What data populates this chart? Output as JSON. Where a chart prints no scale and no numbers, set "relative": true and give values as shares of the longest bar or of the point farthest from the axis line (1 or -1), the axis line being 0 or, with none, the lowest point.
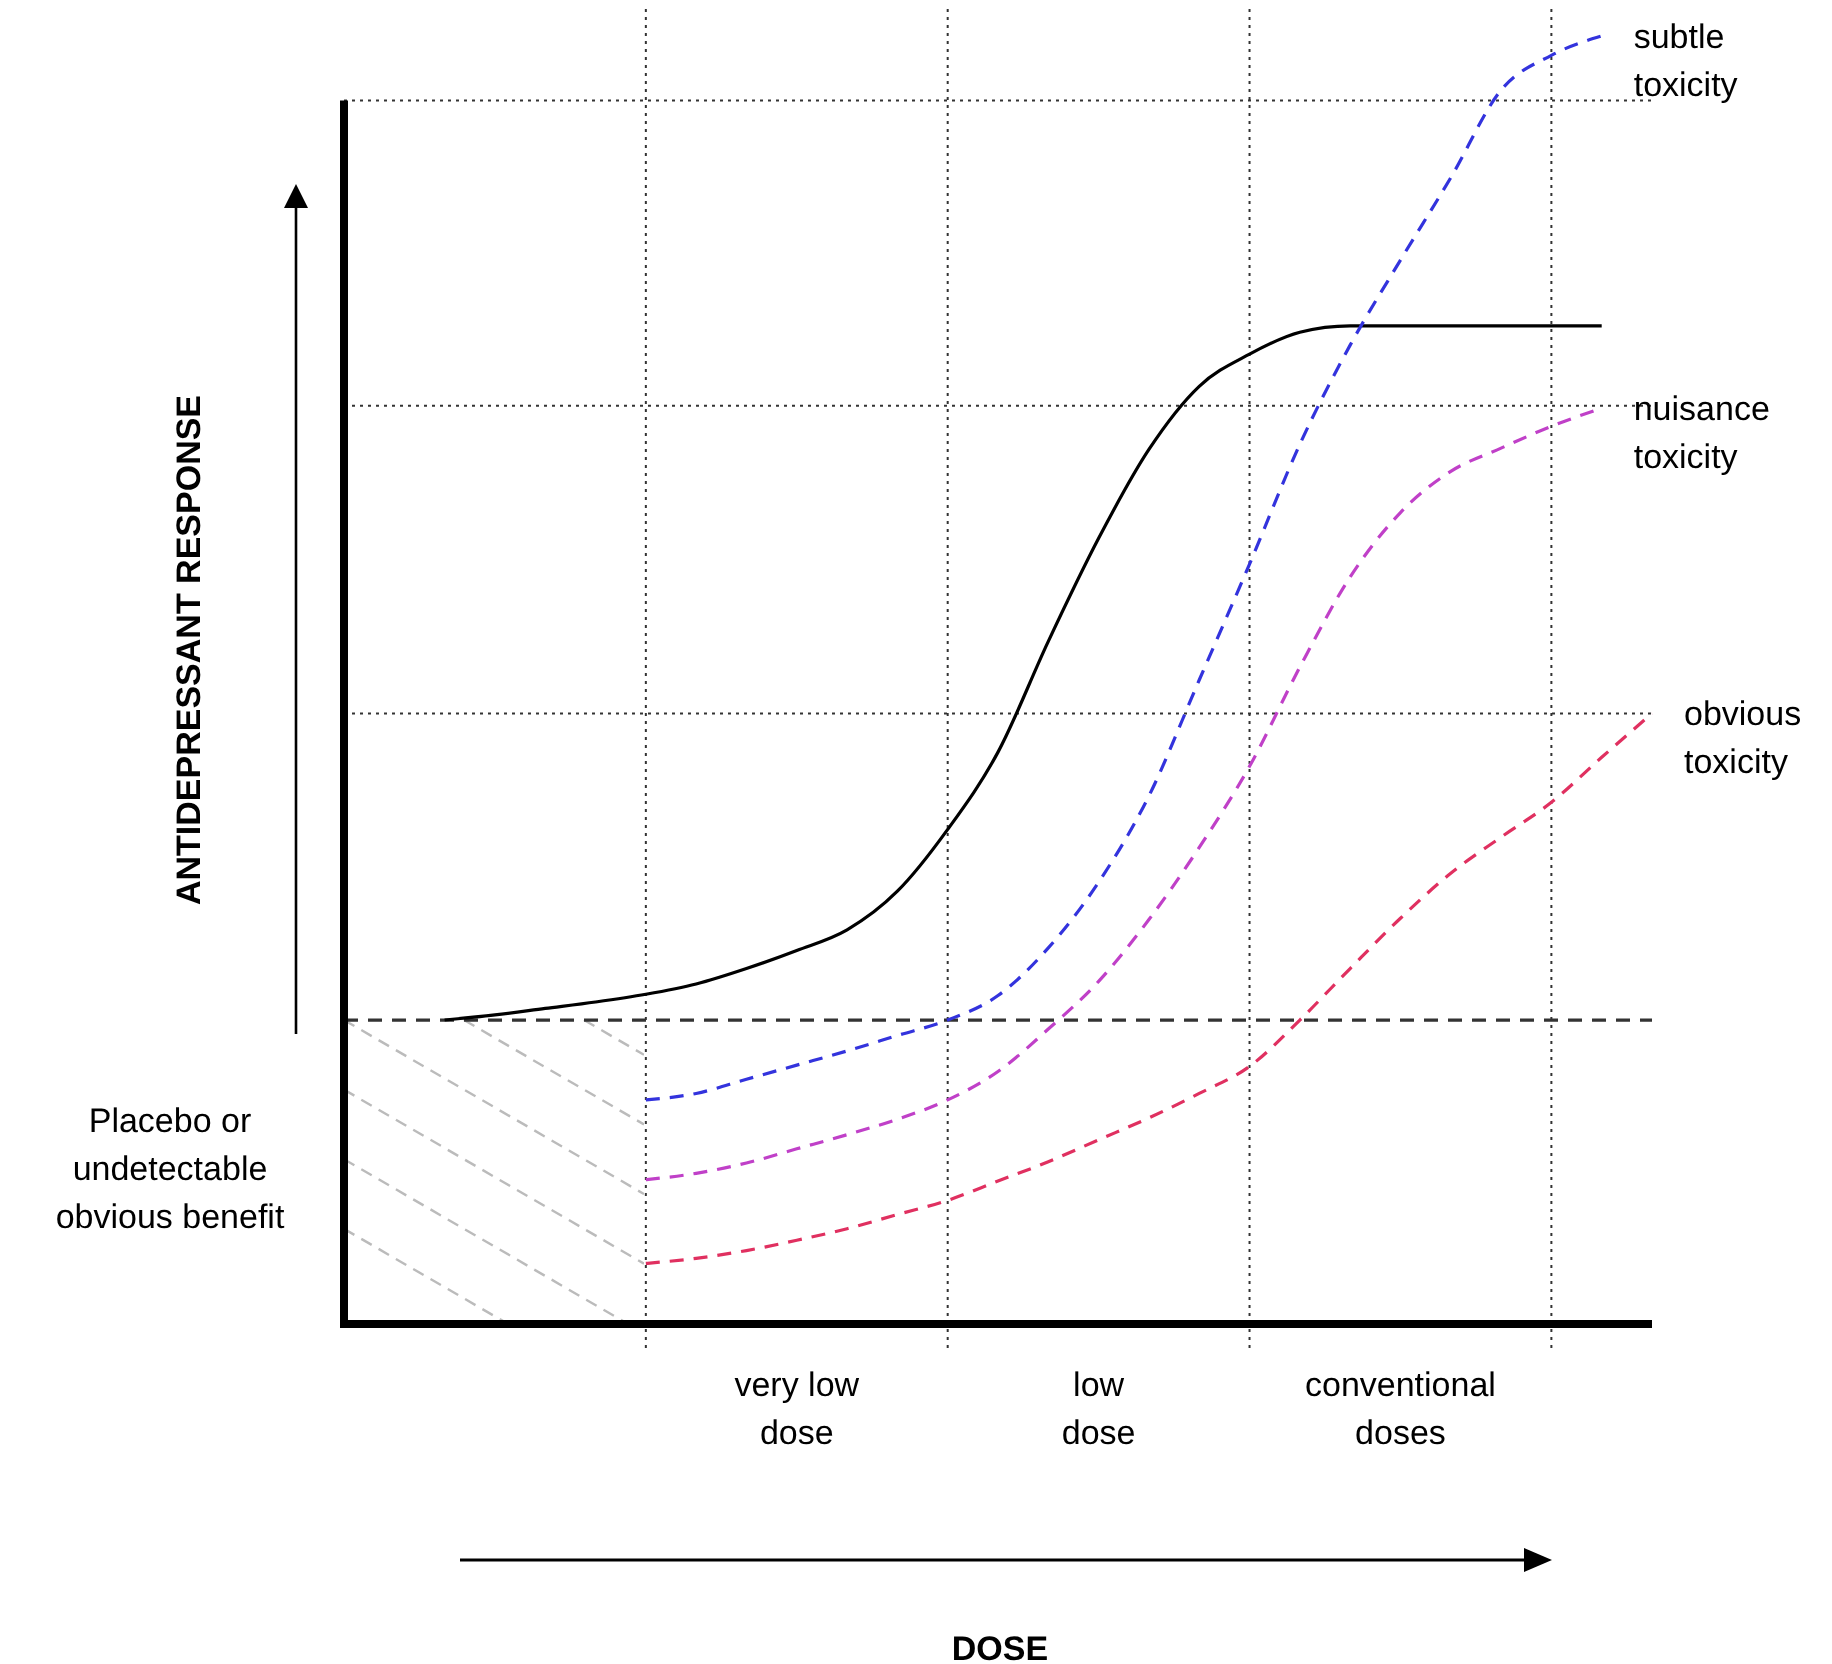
{
  "chart_data": {
    "type": "line",
    "relative": true,
    "grid": "x",
    "ylabel": "ANTIDEPRESSANT RESPONSE",
    "categories": [
      null,
      null,
      null,
      null,
      null,
      null,
      null,
      null,
      null,
      "very low\ndose",
      null,
      null,
      null,
      null,
      null,
      "low\ndose",
      null,
      null,
      null,
      null,
      null,
      "conventional\ndoses",
      null,
      null,
      null,
      null,
      null
    ],
    "tick_labels": "x",
    "line_style": "dashed",
    "marker": "none",
    "series": [
      {
        "color": "#000000",
        "line_style": "solid",
        "values": [
          null,
          null,
          0.236,
          0.24,
          0.245,
          0.25,
          0.256,
          0.264,
          0.276,
          0.29,
          0.306,
          0.336,
          0.384,
          0.444,
          0.53,
          0.61,
          0.679,
          0.728,
          0.753,
          0.77,
          0.775,
          0.775,
          0.775,
          0.775,
          0.775,
          0.775,
          null
        ]
      },
      {
        "name": "subtle\ntoxicity",
        "color": "#3333dd",
        "values": [
          null,
          null,
          null,
          null,
          null,
          null,
          0.174,
          0.179,
          0.19,
          0.201,
          0.212,
          0.224,
          0.236,
          0.255,
          0.292,
          0.343,
          0.41,
          0.5,
          0.59,
          0.683,
          0.76,
          0.826,
          0.89,
          0.958,
          0.985,
          1,
          null
        ]
      },
      {
        "name": "nuisance\ntoxicity",
        "color": "#c040c8",
        "values": [
          null,
          null,
          null,
          null,
          null,
          null,
          0.112,
          0.117,
          0.125,
          0.136,
          0.147,
          0.159,
          0.174,
          0.196,
          0.229,
          0.266,
          0.314,
          0.37,
          0.433,
          0.51,
          0.58,
          0.63,
          0.662,
          0.68,
          0.697,
          0.711,
          null
        ]
      },
      {
        "name": "obvious\ntoxicity",
        "color": "#e03060",
        "values": [
          null,
          null,
          null,
          null,
          null,
          null,
          0.047,
          0.051,
          0.057,
          0.065,
          0.074,
          0.085,
          0.096,
          0.111,
          0.126,
          0.143,
          0.16,
          0.179,
          0.2,
          0.236,
          0.276,
          0.315,
          0.35,
          0.378,
          0.405,
          0.44,
          0.474
        ]
      }
    ],
    "ref_lines": [
      {
        "axis": "y",
        "value": 0.95,
        "line_style": "dotted"
      },
      {
        "axis": "y",
        "value": 0.713,
        "line_style": "dotted"
      },
      {
        "axis": "y",
        "value": 0.474,
        "line_style": "dotted"
      },
      {
        "axis": "y",
        "value": 0.236,
        "line_style": "dashed"
      }
    ],
    "annotations": [
      "Placebo or\nundetectable\nobvious benefit",
      "DOSE"
    ]
  }
}
